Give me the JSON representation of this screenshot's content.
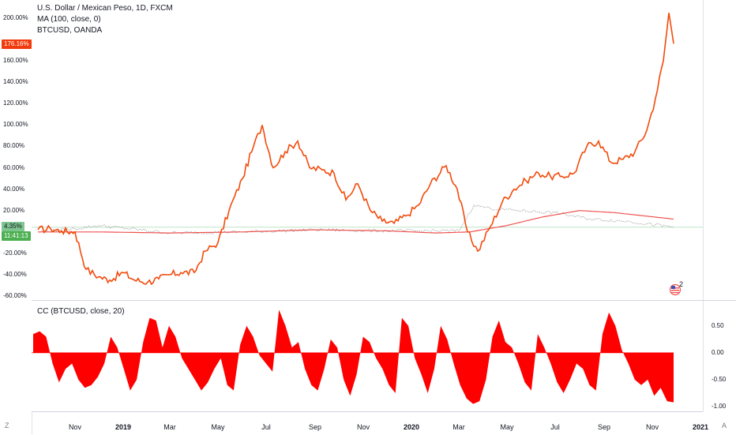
{
  "legend": {
    "symbol": "U.S. Dollar / Mexican Peso, 1D, FXCM",
    "ma": "MA (100, close, 0)",
    "compare": "BTCUSD, OANDA",
    "cc": "CC (BTCUSD, close, 20)"
  },
  "badges": {
    "current": "176.16%",
    "compare_value": "4.35%",
    "countdown": "11:41:13"
  },
  "corner": {
    "left": "Z",
    "right": "A"
  },
  "event_flag": {
    "count": "2"
  },
  "colors": {
    "main_line": "#f24a0b",
    "ma_line": "#ef5350",
    "compare_line": "#9aa09a",
    "cc_fill": "#ff0000",
    "current_badge": "#f23b0c",
    "countdown_badge": "#4caf50"
  },
  "chart_data": [
    {
      "type": "line",
      "title": "U.S. Dollar / Mexican Peso, 1D, FXCM",
      "y_axis_unit": "percent",
      "ylim": [
        -60,
        210
      ],
      "y_ticks": [
        "200.00%",
        "180.00%",
        "160.00%",
        "140.00%",
        "120.00%",
        "100.00%",
        "80.00%",
        "60.00%",
        "40.00%",
        "20.00%",
        "0.00%",
        "-20.00%",
        "-40.00%",
        "-60.00%"
      ],
      "x_ticks": [
        "Nov",
        "2019",
        "Mar",
        "May",
        "Jul",
        "Sep",
        "Nov",
        "2020",
        "Mar",
        "May",
        "Jul",
        "Sep",
        "Nov",
        "2021"
      ],
      "x_ticks_bold": [
        "2019",
        "2020",
        "2021"
      ],
      "series": [
        {
          "name": "BTCUSD, OANDA",
          "x": [
            "2018-09-15",
            "2018-10-01",
            "2018-10-15",
            "2018-11-01",
            "2018-11-15",
            "2018-12-01",
            "2018-12-15",
            "2019-01-01",
            "2019-01-15",
            "2019-02-01",
            "2019-02-15",
            "2019-03-01",
            "2019-03-15",
            "2019-04-01",
            "2019-04-15",
            "2019-05-01",
            "2019-05-15",
            "2019-06-01",
            "2019-06-15",
            "2019-06-26",
            "2019-07-10",
            "2019-07-25",
            "2019-08-10",
            "2019-08-25",
            "2019-09-10",
            "2019-09-25",
            "2019-10-10",
            "2019-10-25",
            "2019-11-10",
            "2019-11-25",
            "2019-12-10",
            "2019-12-25",
            "2020-01-10",
            "2020-01-25",
            "2020-02-14",
            "2020-02-28",
            "2020-03-12",
            "2020-03-25",
            "2020-04-10",
            "2020-04-25",
            "2020-05-10",
            "2020-05-25",
            "2020-06-10",
            "2020-06-25",
            "2020-07-10",
            "2020-07-25",
            "2020-08-10",
            "2020-08-25",
            "2020-09-10",
            "2020-09-25",
            "2020-10-10",
            "2020-10-25",
            "2020-11-05",
            "2020-11-15",
            "2020-11-22",
            "2020-11-28"
          ],
          "values": [
            2,
            3,
            1,
            0,
            -35,
            -42,
            -45,
            -38,
            -45,
            -47,
            -44,
            -40,
            -38,
            -38,
            -18,
            -10,
            20,
            50,
            80,
            100,
            60,
            75,
            85,
            60,
            58,
            55,
            30,
            45,
            20,
            10,
            8,
            15,
            25,
            45,
            62,
            40,
            0,
            -18,
            5,
            28,
            40,
            48,
            55,
            52,
            52,
            55,
            80,
            85,
            65,
            68,
            75,
            95,
            125,
            160,
            205,
            176.16
          ]
        },
        {
          "name": "MA (100, close, 0)",
          "x": [
            "2018-09-15",
            "2018-12-01",
            "2019-03-01",
            "2019-06-01",
            "2019-09-01",
            "2019-12-01",
            "2020-02-01",
            "2020-03-15",
            "2020-05-01",
            "2020-06-15",
            "2020-08-01",
            "2020-09-15",
            "2020-11-28"
          ],
          "values": [
            0,
            0,
            -1,
            0,
            2,
            1,
            -1,
            0,
            6,
            14,
            20,
            18,
            12
          ]
        },
        {
          "name": "U.S. Dollar / Mexican Peso (compare)",
          "x": [
            "2018-09-15",
            "2018-11-01",
            "2018-12-01",
            "2019-03-01",
            "2019-06-01",
            "2019-09-01",
            "2019-12-01",
            "2020-03-01",
            "2020-03-20",
            "2020-04-10",
            "2020-05-15",
            "2020-07-01",
            "2020-08-15",
            "2020-09-30",
            "2020-11-28"
          ],
          "values": [
            0,
            3,
            6,
            -1,
            0,
            2,
            1,
            1,
            25,
            22,
            20,
            18,
            12,
            10,
            4.35
          ]
        }
      ]
    },
    {
      "type": "area",
      "title": "CC (BTCUSD, close, 20)",
      "ylim": [
        -1,
        0.85
      ],
      "y_ticks": [
        "0.50",
        "0.00",
        "-0.50",
        "-1.00"
      ],
      "series": [
        {
          "name": "CC (BTCUSD, close, 20)",
          "values": [
            0.35,
            0.4,
            0.3,
            -0.2,
            -0.55,
            -0.3,
            -0.2,
            -0.5,
            -0.65,
            -0.6,
            -0.45,
            -0.2,
            0.3,
            0.1,
            -0.3,
            -0.7,
            -0.5,
            0.2,
            0.65,
            0.6,
            0.1,
            0.5,
            0.3,
            -0.1,
            -0.3,
            -0.5,
            -0.7,
            -0.55,
            -0.3,
            -0.1,
            -0.6,
            -0.7,
            0.15,
            0.5,
            0.3,
            -0.05,
            -0.2,
            -0.35,
            0.8,
            0.5,
            0.1,
            0.2,
            -0.3,
            -0.6,
            -0.7,
            -0.3,
            0.25,
            0.1,
            -0.5,
            -0.8,
            -0.4,
            0.3,
            0.2,
            -0.1,
            -0.3,
            -0.6,
            -0.75,
            0.65,
            0.5,
            -0.1,
            -0.4,
            -0.75,
            -0.3,
            0.5,
            0.25,
            -0.2,
            -0.6,
            -0.85,
            -0.95,
            -0.9,
            -0.5,
            0.3,
            0.6,
            0.2,
            0.1,
            -0.2,
            -0.55,
            -0.7,
            0.35,
            0.1,
            -0.2,
            -0.55,
            -0.75,
            -0.5,
            -0.2,
            -0.3,
            -0.6,
            -0.7,
            0.35,
            0.75,
            0.5,
            0.05,
            -0.2,
            -0.5,
            -0.6,
            -0.5,
            -0.8,
            -0.65,
            -0.9,
            -0.92
          ]
        }
      ]
    }
  ]
}
